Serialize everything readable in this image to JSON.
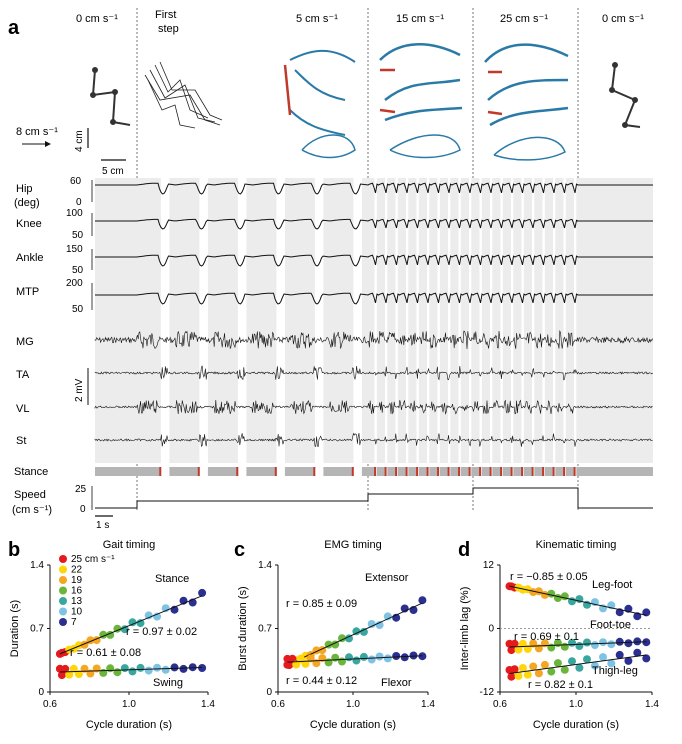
{
  "panels": {
    "a": "a",
    "b": "b",
    "c": "c",
    "d": "d"
  },
  "kinematics": {
    "speed_labels": [
      "0 cm s⁻¹",
      "First step",
      "5 cm s⁻¹",
      "15 cm s⁻¹",
      "25 cm s⁻¹",
      "0 cm s⁻¹"
    ],
    "first_step_line1": "First",
    "first_step_line2": "step",
    "scale_speed": "8 cm s⁻¹",
    "scale_vertical": "4 cm",
    "scale_horizontal": "5 cm"
  },
  "traces": {
    "joint_labels": [
      {
        "name": "Hip",
        "unit": "(deg)",
        "ticks": [
          "60",
          "0"
        ]
      },
      {
        "name": "Knee",
        "ticks": [
          "100",
          "50"
        ]
      },
      {
        "name": "Ankle",
        "ticks": [
          "150",
          "50"
        ]
      },
      {
        "name": "MTP",
        "ticks": [
          "200",
          "50"
        ]
      }
    ],
    "emg_labels": [
      "MG",
      "TA",
      "VL",
      "St"
    ],
    "emg_scale": "2 mV",
    "stance_label": "Stance",
    "speed_label": "Speed",
    "speed_unit": "(cm s⁻¹)",
    "speed_ticks": [
      "25",
      "0"
    ],
    "time_scale": "1 s"
  },
  "chart_data": [
    {
      "type": "scatter",
      "title": "Gait timing",
      "xlabel": "Cycle duration (s)",
      "ylabel": "Duration (s)",
      "xlim": [
        0.6,
        1.4
      ],
      "ylim": [
        0,
        1.4
      ],
      "xticks": [
        "0.6",
        "1.0",
        "1.4"
      ],
      "yticks": [
        "0",
        "0.7",
        "1.4"
      ],
      "legend": {
        "title": "25 cm s⁻¹",
        "entries": [
          "22",
          "19",
          "16",
          "13",
          "10",
          "7"
        ],
        "colors": [
          "#e41a1c",
          "#ffd60a",
          "#f5a623",
          "#6ab53a",
          "#39a7a0",
          "#7ec3e4",
          "#2b2f8f"
        ]
      },
      "series": [
        {
          "name": "Stance",
          "r": "r = 0.97 ± 0.02",
          "fit": [
            [
              0.65,
              0.42
            ],
            [
              1.37,
              1.06
            ]
          ]
        },
        {
          "name": "Swing",
          "r": "r = 0.61 ± 0.08",
          "fit": [
            [
              0.65,
              0.22
            ],
            [
              1.37,
              0.27
            ]
          ]
        }
      ]
    },
    {
      "type": "scatter",
      "title": "EMG timing",
      "xlabel": "Cycle duration (s)",
      "ylabel": "Burst duration (s)",
      "xlim": [
        0.6,
        1.4
      ],
      "ylim": [
        0,
        1.4
      ],
      "xticks": [
        "0.6",
        "1.0",
        "1.4"
      ],
      "yticks": [
        "0",
        "0.7",
        "1.4"
      ],
      "series": [
        {
          "name": "Extensor",
          "r": "r = 0.85 ± 0.09",
          "fit": [
            [
              0.65,
              0.3
            ],
            [
              1.37,
              0.98
            ]
          ]
        },
        {
          "name": "Flexor",
          "r": "r = 0.44 ± 0.12",
          "fit": [
            [
              0.65,
              0.33
            ],
            [
              1.37,
              0.4
            ]
          ]
        }
      ]
    },
    {
      "type": "scatter",
      "title": "Kinematic timing",
      "xlabel": "Cycle duration (s)",
      "ylabel": "Inter-limb lag (%)",
      "xlim": [
        0.6,
        1.4
      ],
      "ylim": [
        -12,
        12
      ],
      "xticks": [
        "0.6",
        "1.0",
        "1.4"
      ],
      "yticks": [
        "12",
        "0",
        "-12"
      ],
      "series": [
        {
          "name": "Leg-foot",
          "r": "r = −0.85 ± 0.05",
          "fit": [
            [
              0.65,
              8
            ],
            [
              1.37,
              2.5
            ]
          ]
        },
        {
          "name": "Foot-toe",
          "r": "r = 0.69 ± 0.1",
          "fit": [
            [
              0.65,
              -3.5
            ],
            [
              1.37,
              -2.5
            ]
          ]
        },
        {
          "name": "Thigh-leg",
          "r": "r = 0.82 ± 0.1",
          "fit": [
            [
              0.65,
              -8.5
            ],
            [
              1.37,
              -5
            ]
          ]
        }
      ]
    }
  ]
}
